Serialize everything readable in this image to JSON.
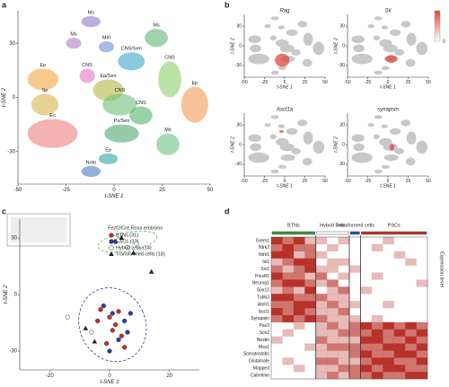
{
  "chart_data": [
    {
      "type": "clusters",
      "label": "a",
      "xlabel": "t-SNE 1",
      "ylabel": "t-SNE 2",
      "xlim": [
        -50,
        50
      ],
      "ylim": [
        -48,
        48
      ],
      "xticks": [
        -50,
        -25,
        0,
        25,
        50
      ],
      "yticks": [
        30,
        0,
        -30
      ],
      "clusters": [
        {
          "name": "Ms",
          "color": "#8e7cc3",
          "x": -12,
          "y": 42,
          "rx": 5,
          "ry": 3
        },
        {
          "name": "Ms",
          "color": "#b07cc6",
          "x": -21,
          "y": 30,
          "rx": 4,
          "ry": 3
        },
        {
          "name": "MIII",
          "color": "#6d8fd6",
          "x": -4,
          "y": 28,
          "rx": 4,
          "ry": 3
        },
        {
          "name": "Ms",
          "color": "#5fb870",
          "x": 22,
          "y": 33,
          "rx": 6,
          "ry": 5
        },
        {
          "name": "CNS",
          "color": "#e377c2",
          "x": -14,
          "y": 12,
          "rx": 4,
          "ry": 4
        },
        {
          "name": "CNS/Sen",
          "color": "#3aa6c9",
          "x": 9,
          "y": 20,
          "rx": 7,
          "ry": 5
        },
        {
          "name": "Ep/Sen",
          "color": "#b5b84a",
          "x": -3,
          "y": 4,
          "rx": 8,
          "ry": 6
        },
        {
          "name": "Ep",
          "color": "#f0a640",
          "x": -37,
          "y": 10,
          "rx": 8,
          "ry": 6
        },
        {
          "name": "Sp",
          "color": "#d9b34a",
          "x": -36,
          "y": -4,
          "rx": 7,
          "ry": 6
        },
        {
          "name": "Ec",
          "color": "#ef7f7f",
          "x": -32,
          "y": -20,
          "rx": 13,
          "ry": 8
        },
        {
          "name": "CNS",
          "color": "#6fc27a",
          "x": 3,
          "y": -4,
          "rx": 9,
          "ry": 6
        },
        {
          "name": "CNS",
          "color": "#8ccf6a",
          "x": 29,
          "y": 10,
          "rx": 6,
          "ry": 10
        },
        {
          "name": "CNS",
          "color": "#56b36a",
          "x": 14,
          "y": -10,
          "rx": 6,
          "ry": 5
        },
        {
          "name": "Ps/Sen",
          "color": "#4fa86b",
          "x": 4,
          "y": -20,
          "rx": 9,
          "ry": 5
        },
        {
          "name": "Ep",
          "color": "#f19a52",
          "x": 42,
          "y": -4,
          "rx": 7,
          "ry": 10
        },
        {
          "name": "Ms",
          "color": "#6cbf7e",
          "x": 28,
          "y": -26,
          "rx": 6,
          "ry": 6
        },
        {
          "name": "Ep",
          "color": "#2ca6a4",
          "x": -3,
          "y": -34,
          "rx": 5,
          "ry": 3
        },
        {
          "name": "Noto",
          "color": "#4a78c4",
          "x": -12,
          "y": -41,
          "rx": 5,
          "ry": 3
        }
      ]
    },
    {
      "type": "small_multiples",
      "label": "b",
      "xlabel": "t-SNE 1",
      "ylabel": "t-SNE 2",
      "xlim": [
        -50,
        50
      ],
      "ylim": [
        -48,
        48
      ],
      "xticks": [
        -50,
        -25,
        0,
        25,
        50
      ],
      "yticks": [
        30,
        0,
        -30
      ],
      "highlight_color": "#e0473a",
      "colorbar_ticks": [
        0
      ],
      "panels": [
        {
          "title": "Rag",
          "x": -3,
          "y": -22,
          "rx": 9,
          "ry": 10
        },
        {
          "title": "Sil",
          "x": 4,
          "y": -20,
          "rx": 7,
          "ry": 6
        },
        {
          "title": "Ascl1a",
          "x": -4,
          "y": 20,
          "rx": 3,
          "ry": 2
        },
        {
          "title": "synapsin",
          "x": 5,
          "y": -4,
          "rx": 3,
          "ry": 5
        }
      ]
    },
    {
      "type": "scatter",
      "label": "c",
      "title": "Fezf2/Cre;Rosa embryos",
      "xlabel": "t-SNE 1",
      "ylabel": "t-SNE 2",
      "xlim": [
        -30,
        30
      ],
      "ylim": [
        -40,
        40
      ],
      "xticks": [
        -20,
        0,
        20
      ],
      "yticks": [
        30,
        0,
        -30
      ],
      "series": [
        {
          "name": "BTNs (31)",
          "color": "#d62728",
          "marker": "circle",
          "x": [
            -3,
            0,
            2,
            4,
            -1,
            3,
            5,
            1,
            -4
          ],
          "y": [
            -8,
            -12,
            -16,
            -22,
            -26,
            -9,
            -28,
            -19,
            -14
          ]
        },
        {
          "name": "PSCs (32)",
          "color": "#2a3fa8",
          "marker": "circle",
          "x": [
            -2,
            1,
            5,
            3,
            6,
            0,
            2,
            7
          ],
          "y": [
            -6,
            -10,
            -14,
            -24,
            -20,
            -30,
            28,
            -10
          ]
        },
        {
          "name": "Hybrid cells (14)",
          "color": "#ffffff",
          "marker": "circle",
          "x": [
            -14,
            3,
            6,
            9,
            -6
          ],
          "y": [
            -12,
            29,
            25,
            27,
            -20
          ]
        },
        {
          "name": "Transformed cells (18)",
          "color": "#222222",
          "marker": "triangle",
          "x": [
            -8,
            4,
            14,
            8,
            -5
          ],
          "y": [
            -18,
            30,
            12,
            22,
            -25
          ]
        }
      ],
      "ellipses": [
        {
          "color": "#5cb85c",
          "x": 6,
          "y": 28,
          "rx": 10,
          "ry": 5,
          "angle": -10
        },
        {
          "color": "#2a3fa8",
          "x": 1,
          "y": -16,
          "rx": 11,
          "ry": 20,
          "angle": -25
        }
      ]
    },
    {
      "type": "heatmap",
      "label": "d",
      "legend_label": "Expression level",
      "color": "#b8322a",
      "groups": [
        {
          "name": "BTNs",
          "color": "#3c9a3c",
          "span": 4
        },
        {
          "name": "Hybrid cells",
          "color": "#ffffff",
          "span": 3
        },
        {
          "name": "Transformed cells",
          "color": "#2a5bb8",
          "span": 1
        },
        {
          "name": "PSCs",
          "color": "#c0392b",
          "span": 6
        }
      ],
      "rows": [
        {
          "name": "Grem1",
          "color": "#c0392b"
        },
        {
          "name": "Ntrk2",
          "color": "#c0392b"
        },
        {
          "name": "Ntrk1",
          "color": "#c0392b"
        },
        {
          "name": "Isl1",
          "color": "#3c9a3c"
        },
        {
          "name": "Six1",
          "color": "#3c9a3c"
        },
        {
          "name": "Pou4f1",
          "color": "#c0392b"
        },
        {
          "name": "Neurog1",
          "color": "#c0392b"
        },
        {
          "name": "Sox10",
          "color": "#3c9a3c"
        },
        {
          "name": "Tubb3",
          "color": "#3c9a3c"
        },
        {
          "name": "Atoh1",
          "color": "#222222"
        },
        {
          "name": "Ascl1",
          "color": "#222222"
        },
        {
          "name": "Synapsin",
          "color": "#222222"
        },
        {
          "name": "Pax3",
          "color": "#c0392b"
        },
        {
          "name": "Sox2",
          "color": "#c0392b"
        },
        {
          "name": "Nestin",
          "color": "#3c9a3c"
        },
        {
          "name": "Msx1",
          "color": "#3c9a3c"
        },
        {
          "name": "Somatostatin",
          "color": "#222222"
        },
        {
          "name": "Glutamate",
          "color": "#222222"
        },
        {
          "name": "Mapped",
          "color": "#222222"
        },
        {
          "name": "Calretinin",
          "color": "#222222"
        }
      ],
      "values": [
        [
          3,
          2,
          3,
          1,
          1,
          0,
          1,
          0,
          0,
          0,
          1,
          0,
          0,
          0
        ],
        [
          2,
          3,
          2,
          2,
          0,
          1,
          0,
          0,
          0,
          1,
          0,
          0,
          0,
          0
        ],
        [
          3,
          3,
          1,
          2,
          1,
          0,
          0,
          0,
          0,
          0,
          0,
          1,
          0,
          0
        ],
        [
          1,
          2,
          3,
          3,
          0,
          1,
          1,
          0,
          0,
          0,
          0,
          0,
          1,
          0
        ],
        [
          2,
          1,
          2,
          3,
          1,
          1,
          0,
          1,
          0,
          0,
          0,
          0,
          0,
          0
        ],
        [
          3,
          2,
          2,
          1,
          2,
          0,
          1,
          0,
          0,
          1,
          0,
          0,
          0,
          0
        ],
        [
          2,
          3,
          3,
          2,
          1,
          2,
          0,
          0,
          0,
          0,
          0,
          0,
          0,
          1
        ],
        [
          1,
          2,
          1,
          3,
          0,
          1,
          2,
          0,
          1,
          0,
          0,
          0,
          0,
          0
        ],
        [
          3,
          3,
          2,
          2,
          2,
          1,
          1,
          0,
          0,
          0,
          0,
          0,
          0,
          0
        ],
        [
          2,
          2,
          3,
          3,
          1,
          2,
          1,
          1,
          0,
          0,
          1,
          0,
          0,
          0
        ],
        [
          3,
          2,
          3,
          2,
          1,
          1,
          2,
          0,
          0,
          0,
          0,
          0,
          0,
          0
        ],
        [
          2,
          3,
          2,
          3,
          2,
          1,
          1,
          1,
          0,
          1,
          0,
          0,
          0,
          0
        ],
        [
          0,
          0,
          1,
          0,
          1,
          2,
          1,
          2,
          3,
          2,
          3,
          2,
          3,
          2
        ],
        [
          0,
          1,
          0,
          0,
          1,
          1,
          2,
          2,
          2,
          3,
          2,
          3,
          2,
          3
        ],
        [
          1,
          0,
          0,
          0,
          2,
          1,
          1,
          1,
          3,
          3,
          2,
          2,
          3,
          2
        ],
        [
          0,
          0,
          0,
          1,
          1,
          2,
          2,
          2,
          2,
          2,
          3,
          3,
          2,
          3
        ],
        [
          0,
          0,
          0,
          0,
          1,
          1,
          1,
          2,
          3,
          2,
          2,
          3,
          3,
          2
        ],
        [
          0,
          1,
          0,
          0,
          2,
          2,
          1,
          1,
          2,
          3,
          3,
          2,
          2,
          3
        ],
        [
          0,
          0,
          1,
          0,
          1,
          1,
          2,
          2,
          3,
          2,
          3,
          3,
          2,
          2
        ],
        [
          0,
          0,
          0,
          0,
          1,
          2,
          1,
          2,
          2,
          3,
          2,
          2,
          3,
          3
        ]
      ]
    }
  ]
}
